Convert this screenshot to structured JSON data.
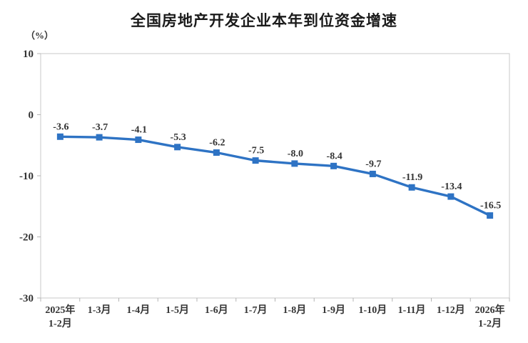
{
  "title": "全国房地产开发企业本年到位资金增速",
  "unit_label": "（%）",
  "chart_data": {
    "type": "line",
    "title": "全国房地产开发企业本年到位资金增速",
    "ylabel": "（%）",
    "categories": [
      "2025年\n1-2月",
      "1-3月",
      "1-4月",
      "1-5月",
      "1-6月",
      "1-7月",
      "1-8月",
      "1-9月",
      "1-10月",
      "1-11月",
      "1-12月",
      "2026年\n1-2月"
    ],
    "values": [
      -3.6,
      -3.7,
      -4.1,
      -5.3,
      -6.2,
      -7.5,
      -8.0,
      -8.4,
      -9.7,
      -11.9,
      -13.4,
      -16.5
    ],
    "data_labels": [
      "-3.6",
      "-3.7",
      "-4.1",
      "-5.3",
      "-6.2",
      "-7.5",
      "-8.0",
      "-8.4",
      "-9.7",
      "-11.9",
      "-13.4",
      "-16.5"
    ],
    "ylim": [
      -30,
      10
    ],
    "yticks": [
      10,
      0,
      -10,
      -20,
      -30
    ],
    "grid": false,
    "legend": "none",
    "marker": "square",
    "colors": {
      "line": "#2E73C4",
      "marker": "#2E73C4",
      "plot_border": "#C9C9C9",
      "tick": "#B5B5B5",
      "number_text": "#333333",
      "category_text": "#333333",
      "title_text": "#1A1A1A",
      "background": "#FFFFFF"
    }
  }
}
